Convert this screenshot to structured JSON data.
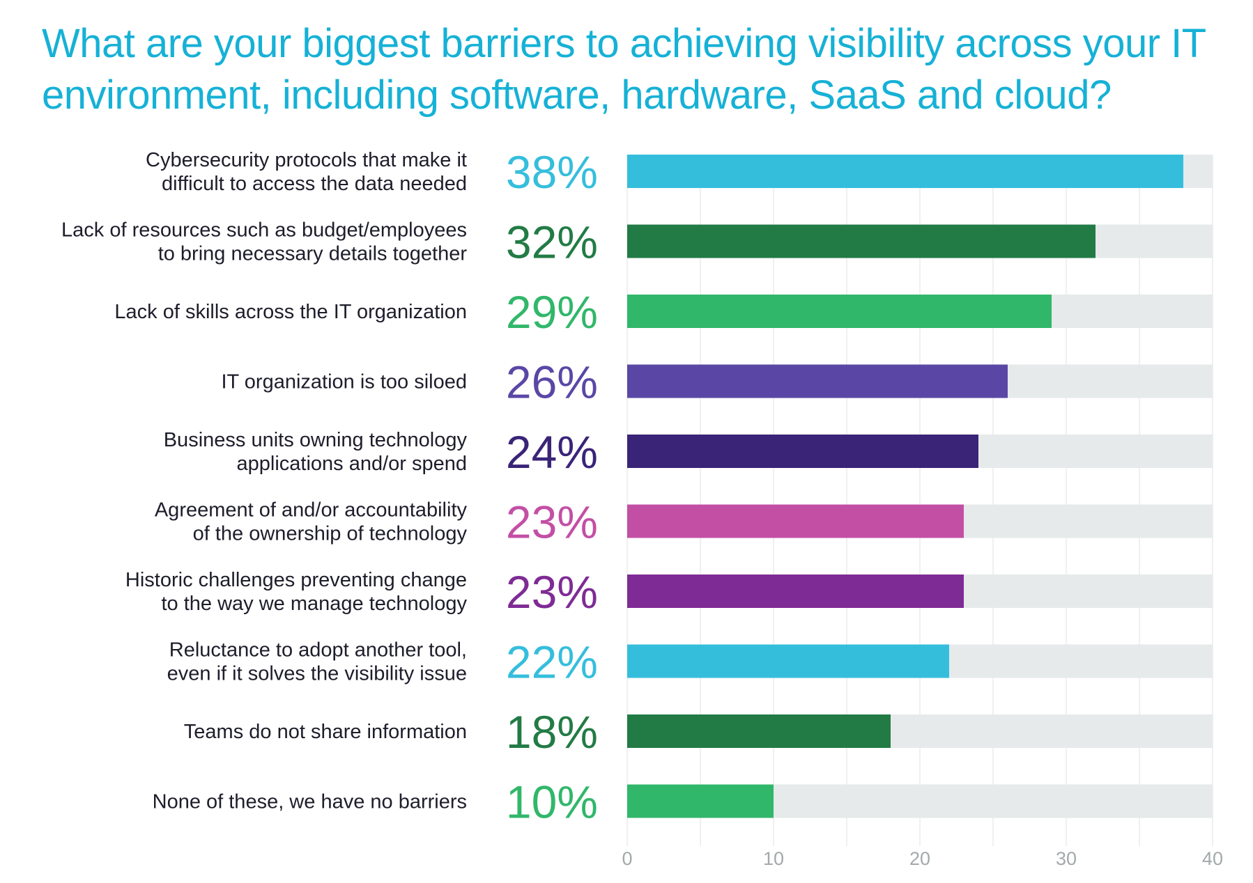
{
  "chart_data": {
    "type": "bar",
    "orientation": "horizontal",
    "title": "What are your biggest barriers to achieving visibility across your IT environment, including software, hardware, SaaS and cloud?",
    "categories": [
      [
        "Cybersecurity protocols that make it",
        "difficult to access the data needed"
      ],
      [
        "Lack of resources such as budget/employees",
        "to bring necessary details together"
      ],
      [
        "Lack of skills across the IT organization"
      ],
      [
        "IT organization is too siloed"
      ],
      [
        "Business units owning technology",
        "applications and/or spend"
      ],
      [
        "Agreement of and/or accountability",
        "of the ownership of technology"
      ],
      [
        "Historic challenges preventing change",
        "to the way we manage technology"
      ],
      [
        "Reluctance to adopt another tool,",
        "even if it solves the visibility issue"
      ],
      [
        "Teams do not share information"
      ],
      [
        "None of these, we have no barriers"
      ]
    ],
    "values": [
      38,
      32,
      29,
      26,
      24,
      23,
      23,
      22,
      18,
      10
    ],
    "value_labels": [
      "38%",
      "32%",
      "29%",
      "26%",
      "24%",
      "23%",
      "23%",
      "22%",
      "18%",
      "10%"
    ],
    "colors": [
      "#35bedc",
      "#227b45",
      "#31b76a",
      "#5a47a5",
      "#3a2478",
      "#c34fa5",
      "#7f2b95",
      "#35bedc",
      "#227b45",
      "#31b76a"
    ],
    "track_color": "#e6eaea",
    "xlim": [
      0,
      40
    ],
    "xticks": [
      "0",
      "10",
      "20",
      "30",
      "40"
    ],
    "grid": true
  }
}
